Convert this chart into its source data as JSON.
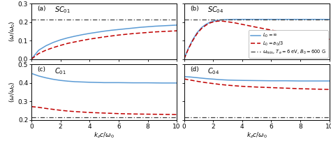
{
  "omega_min": 0.215,
  "xlim": [
    0,
    10
  ],
  "panels": [
    {
      "label": "a",
      "title_base": "SC",
      "title_sub": "01",
      "ylim": [
        0,
        0.3
      ],
      "yticks": [
        0.0,
        0.1,
        0.2,
        0.3
      ],
      "blue_x": [
        0.0,
        0.5,
        1.0,
        1.5,
        2.0,
        2.5,
        3.0,
        3.5,
        4.0,
        4.5,
        5.0,
        5.5,
        6.0,
        6.5,
        7.0,
        7.5,
        8.0,
        8.5,
        9.0,
        9.5,
        10.0
      ],
      "blue_y": [
        0.0,
        0.048,
        0.072,
        0.09,
        0.104,
        0.115,
        0.124,
        0.132,
        0.139,
        0.145,
        0.151,
        0.156,
        0.16,
        0.164,
        0.168,
        0.172,
        0.175,
        0.178,
        0.18,
        0.182,
        0.184
      ],
      "red_x": [
        0.0,
        0.5,
        1.0,
        1.5,
        2.0,
        2.5,
        3.0,
        3.5,
        4.0,
        4.5,
        5.0,
        5.5,
        6.0,
        6.5,
        7.0,
        7.5,
        8.0,
        8.5,
        9.0,
        9.5,
        10.0
      ],
      "red_y": [
        0.0,
        0.03,
        0.048,
        0.062,
        0.074,
        0.085,
        0.093,
        0.101,
        0.108,
        0.114,
        0.12,
        0.125,
        0.13,
        0.134,
        0.138,
        0.141,
        0.144,
        0.147,
        0.149,
        0.151,
        0.153
      ]
    },
    {
      "label": "b",
      "title_base": "SC",
      "title_sub": "04",
      "ylim": [
        0,
        0.3
      ],
      "yticks": [
        0.0,
        0.1,
        0.2,
        0.3
      ],
      "blue_x": [
        0.0,
        0.3,
        0.6,
        0.9,
        1.2,
        1.5,
        1.8,
        2.1,
        2.4,
        2.7,
        3.0,
        3.5,
        4.0,
        5.0,
        6.0,
        7.0,
        8.0,
        9.0,
        10.0
      ],
      "blue_y": [
        0.0,
        0.058,
        0.105,
        0.143,
        0.17,
        0.188,
        0.2,
        0.207,
        0.211,
        0.213,
        0.214,
        0.215,
        0.215,
        0.215,
        0.215,
        0.215,
        0.215,
        0.215,
        0.215
      ],
      "red_x": [
        0.0,
        0.3,
        0.6,
        0.9,
        1.2,
        1.5,
        1.8,
        2.1,
        2.4,
        2.7,
        3.0,
        3.5,
        4.0,
        4.5,
        5.0,
        6.0,
        7.0,
        8.0,
        9.0,
        10.0
      ],
      "red_y": [
        0.0,
        0.055,
        0.1,
        0.138,
        0.165,
        0.183,
        0.196,
        0.203,
        0.206,
        0.205,
        0.202,
        0.196,
        0.188,
        0.18,
        0.172,
        0.157,
        0.143,
        0.13,
        0.118,
        0.107
      ]
    },
    {
      "label": "c",
      "title_base": "C",
      "title_sub": "01",
      "ylim": [
        0.2,
        0.5
      ],
      "yticks": [
        0.2,
        0.3,
        0.4,
        0.5
      ],
      "blue_x": [
        0.0,
        0.5,
        1.0,
        1.5,
        2.0,
        2.5,
        3.0,
        4.0,
        5.0,
        6.0,
        7.0,
        8.0,
        9.0,
        10.0
      ],
      "blue_y": [
        0.452,
        0.438,
        0.428,
        0.42,
        0.414,
        0.41,
        0.407,
        0.404,
        0.402,
        0.402,
        0.401,
        0.401,
        0.4,
        0.4
      ],
      "red_x": [
        0.0,
        0.5,
        1.0,
        1.5,
        2.0,
        2.5,
        3.0,
        4.0,
        5.0,
        6.0,
        7.0,
        8.0,
        9.0,
        10.0
      ],
      "red_y": [
        0.272,
        0.268,
        0.262,
        0.257,
        0.252,
        0.248,
        0.245,
        0.24,
        0.237,
        0.234,
        0.232,
        0.231,
        0.23,
        0.229
      ]
    },
    {
      "label": "d",
      "title_base": "C",
      "title_sub": "04",
      "ylim": [
        0.2,
        0.5
      ],
      "yticks": [
        0.2,
        0.3,
        0.4,
        0.5
      ],
      "blue_x": [
        0.0,
        0.5,
        1.0,
        1.5,
        2.0,
        2.5,
        3.0,
        4.0,
        5.0,
        6.0,
        7.0,
        8.0,
        9.0,
        10.0
      ],
      "blue_y": [
        0.435,
        0.432,
        0.428,
        0.424,
        0.421,
        0.418,
        0.416,
        0.414,
        0.413,
        0.412,
        0.412,
        0.411,
        0.411,
        0.411
      ],
      "red_x": [
        0.0,
        0.5,
        1.0,
        1.5,
        2.0,
        2.5,
        3.0,
        3.5,
        4.0,
        5.0,
        6.0,
        7.0,
        8.0,
        9.0,
        10.0
      ],
      "red_y": [
        0.422,
        0.415,
        0.408,
        0.402,
        0.397,
        0.392,
        0.388,
        0.385,
        0.382,
        0.378,
        0.375,
        0.372,
        0.369,
        0.367,
        0.365
      ]
    }
  ],
  "blue_color": "#5b9bd5",
  "red_color": "#c00000",
  "dashdot_color": "#404040",
  "xlabel": "$k_z c/\\omega_0$",
  "ylabel": "$(\\omega/\\omega_0)$",
  "xticks": [
    0,
    2,
    4,
    6,
    8,
    10
  ]
}
